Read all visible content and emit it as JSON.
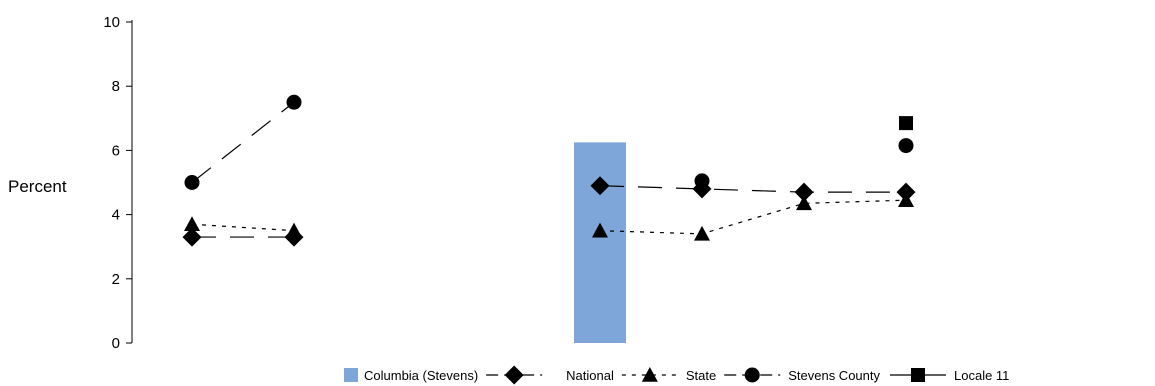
{
  "chart_data": {
    "type": "line",
    "title": "",
    "xlabel": "",
    "ylabel": "Percent",
    "ylim": [
      0,
      10
    ],
    "yticks": [
      0,
      2,
      4,
      6,
      8,
      10
    ],
    "grid": false,
    "legend_position": "bottom-right",
    "x_slots": 10,
    "bar_series": {
      "name": "Columbia (Stevens)",
      "color": "#7ea6d8",
      "points": [
        {
          "x": 5,
          "y": 6.25
        }
      ]
    },
    "series": [
      {
        "name": "National",
        "marker": "diamond",
        "line": "long-dash",
        "segments": [
          [
            {
              "x": 1,
              "y": 3.3
            },
            {
              "x": 2,
              "y": 3.3
            }
          ],
          [
            {
              "x": 5,
              "y": 4.9
            },
            {
              "x": 6,
              "y": 4.8
            },
            {
              "x": 7,
              "y": 4.7
            },
            {
              "x": 8,
              "y": 4.7
            }
          ]
        ]
      },
      {
        "name": "State",
        "marker": "triangle",
        "line": "short-dash",
        "segments": [
          [
            {
              "x": 1,
              "y": 3.7
            },
            {
              "x": 2,
              "y": 3.5
            }
          ],
          [
            {
              "x": 5,
              "y": 3.5
            },
            {
              "x": 6,
              "y": 3.4
            },
            {
              "x": 7,
              "y": 4.35
            },
            {
              "x": 8,
              "y": 4.45
            }
          ]
        ]
      },
      {
        "name": "Stevens County",
        "marker": "circle",
        "line": "long-dash",
        "segments": [
          [
            {
              "x": 1,
              "y": 5.0
            },
            {
              "x": 2,
              "y": 7.5
            }
          ],
          [
            {
              "x": 6,
              "y": 5.05
            }
          ],
          [
            {
              "x": 8,
              "y": 6.15
            }
          ]
        ]
      },
      {
        "name": "Locale 11",
        "marker": "square",
        "line": "solid",
        "segments": [
          [
            {
              "x": 8,
              "y": 6.85
            }
          ]
        ]
      }
    ]
  }
}
